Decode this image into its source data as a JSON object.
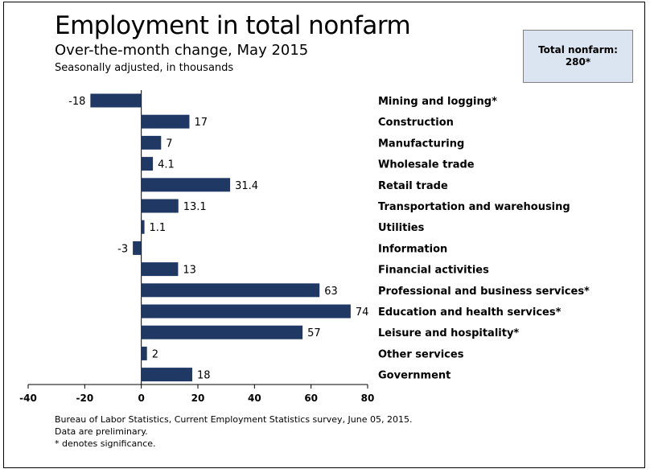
{
  "header": {
    "title": "Employment in total nonfarm",
    "subtitle": "Over-the-month change, May 2015",
    "note": "Seasonally adjusted, in thousands"
  },
  "total_box": {
    "label": "Total nonfarm:",
    "value": "280*"
  },
  "footer": {
    "source": "Bureau of Labor Statistics, Current Employment Statistics survey, June 05, 2015.",
    "preliminary": "Data are preliminary.",
    "significance": "* denotes significance."
  },
  "colors": {
    "bar": "#1f3864",
    "box": "#dbe5f1"
  },
  "chart_data": {
    "type": "bar",
    "orientation": "horizontal",
    "title": "Employment in total nonfarm",
    "subtitle": "Over-the-month change, May 2015",
    "xlabel": "",
    "ylabel": "",
    "xlim": [
      -40,
      80
    ],
    "xticks": [
      -40,
      -20,
      0,
      20,
      40,
      60,
      80
    ],
    "grid": false,
    "categories": [
      "Mining and logging*",
      "Construction",
      "Manufacturing",
      "Wholesale trade",
      "Retail trade",
      "Transportation and warehousing",
      "Utilities",
      "Information",
      "Financial activities",
      "Professional and business services*",
      "Education and health services*",
      "Leisure and hospitality*",
      "Other services",
      "Government"
    ],
    "values": [
      -18,
      17,
      7,
      4.1,
      31.4,
      13.1,
      1.1,
      -3,
      13,
      63,
      74,
      57,
      2,
      18
    ],
    "labels": [
      "-18",
      "17",
      "7",
      "4.1",
      "31.4",
      "13.1",
      "1.1",
      "-3",
      "13",
      "63",
      "74",
      "57",
      "2",
      "18"
    ]
  }
}
